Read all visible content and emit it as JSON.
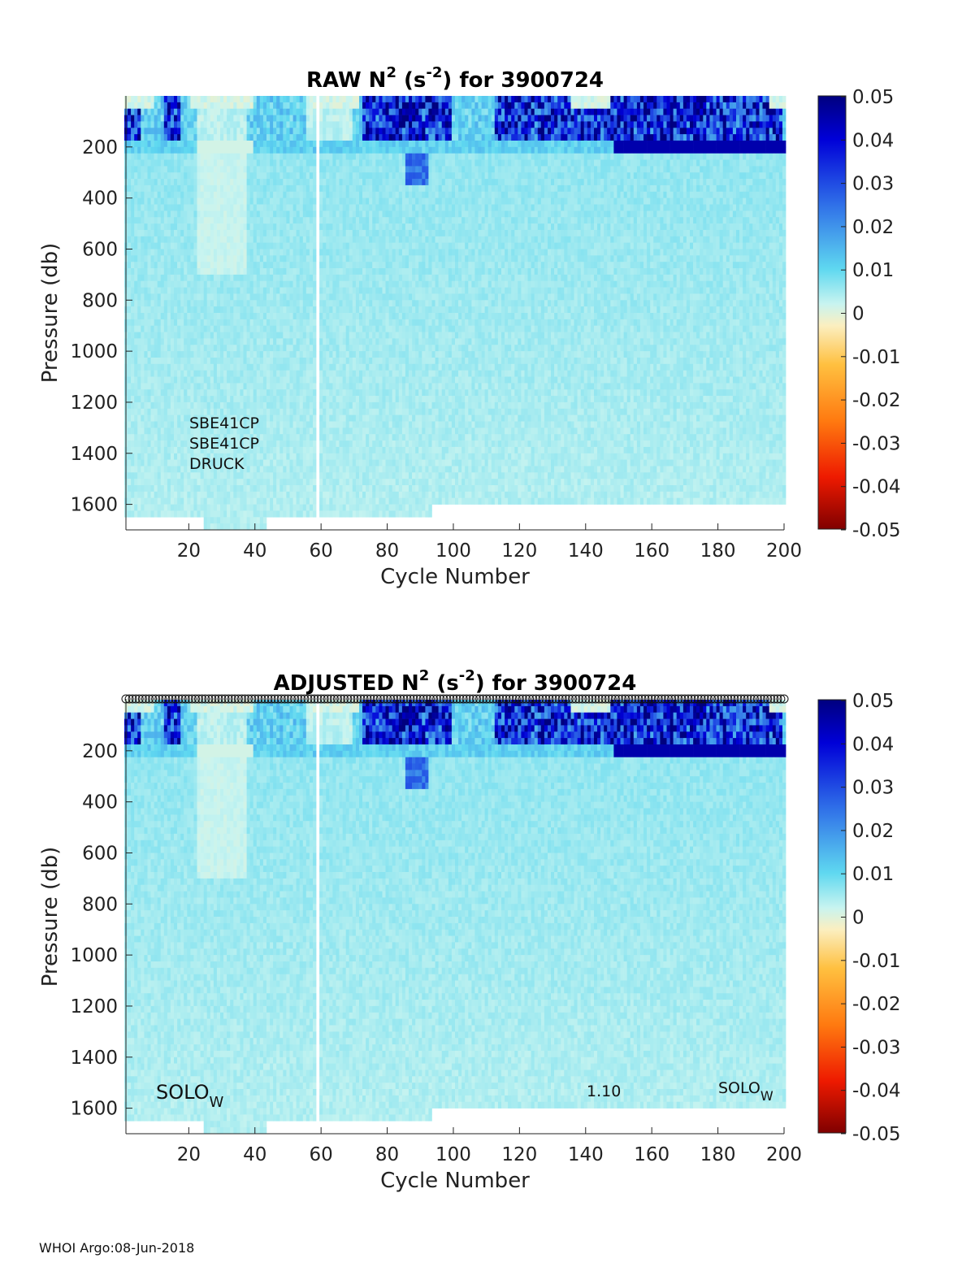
{
  "footer": "WHOI Argo:08-Jun-2018",
  "chart_data": [
    {
      "type": "heatmap",
      "title_prefix": "RAW N",
      "title_sup1": "2",
      "title_mid": " (s",
      "title_sup2": "-2",
      "title_suffix": ") for 3900724",
      "xlabel": "Cycle Number",
      "ylabel": "Pressure (db)",
      "xlim": [
        1,
        200
      ],
      "ylim": [
        1700,
        0
      ],
      "xticks": [
        20,
        40,
        60,
        80,
        100,
        120,
        140,
        160,
        180,
        200
      ],
      "yticks": [
        200,
        400,
        600,
        800,
        1000,
        1200,
        1400,
        1600
      ],
      "colorbar": {
        "min": -0.05,
        "max": 0.05,
        "ticks": [
          "0.05",
          "0.04",
          "0.03",
          "0.02",
          "0.01",
          "0",
          "-0.01",
          "-0.02",
          "-0.03",
          "-0.04",
          "-0.05"
        ]
      },
      "annotations": {
        "sensor1": "SBE41CP",
        "sensor2": "SBE41CP",
        "sensor3": "DRUCK"
      },
      "profile_max_pressure_by_segment": [
        {
          "cycles": [
            1,
            24
          ],
          "max_pressure": 1650
        },
        {
          "cycles": [
            25,
            43
          ],
          "max_pressure": 1700
        },
        {
          "cycles": [
            44,
            93
          ],
          "max_pressure": 1650
        },
        {
          "cycles": [
            94,
            200
          ],
          "max_pressure": 1600
        }
      ]
    },
    {
      "type": "heatmap",
      "title_prefix": "ADJUSTED N",
      "title_sup1": "2",
      "title_mid": " (s",
      "title_sup2": "-2",
      "title_suffix": ") for 3900724",
      "xlabel": "Cycle Number",
      "ylabel": "Pressure (db)",
      "xlim": [
        1,
        200
      ],
      "ylim": [
        1700,
        0
      ],
      "xticks": [
        20,
        40,
        60,
        80,
        100,
        120,
        140,
        160,
        180,
        200
      ],
      "yticks": [
        200,
        400,
        600,
        800,
        1000,
        1200,
        1400,
        1600
      ],
      "colorbar": {
        "min": -0.05,
        "max": 0.05,
        "ticks": [
          "0.05",
          "0.04",
          "0.03",
          "0.02",
          "0.01",
          "0",
          "-0.01",
          "-0.02",
          "-0.03",
          "-0.04",
          "-0.05"
        ]
      },
      "annotations": {
        "float_left": "SOLO",
        "float_left_sub": "W",
        "version": "1.10",
        "float_right": "SOLO",
        "float_right_sub": "W"
      },
      "qc_markers": "open circles along top for every cycle"
    }
  ]
}
